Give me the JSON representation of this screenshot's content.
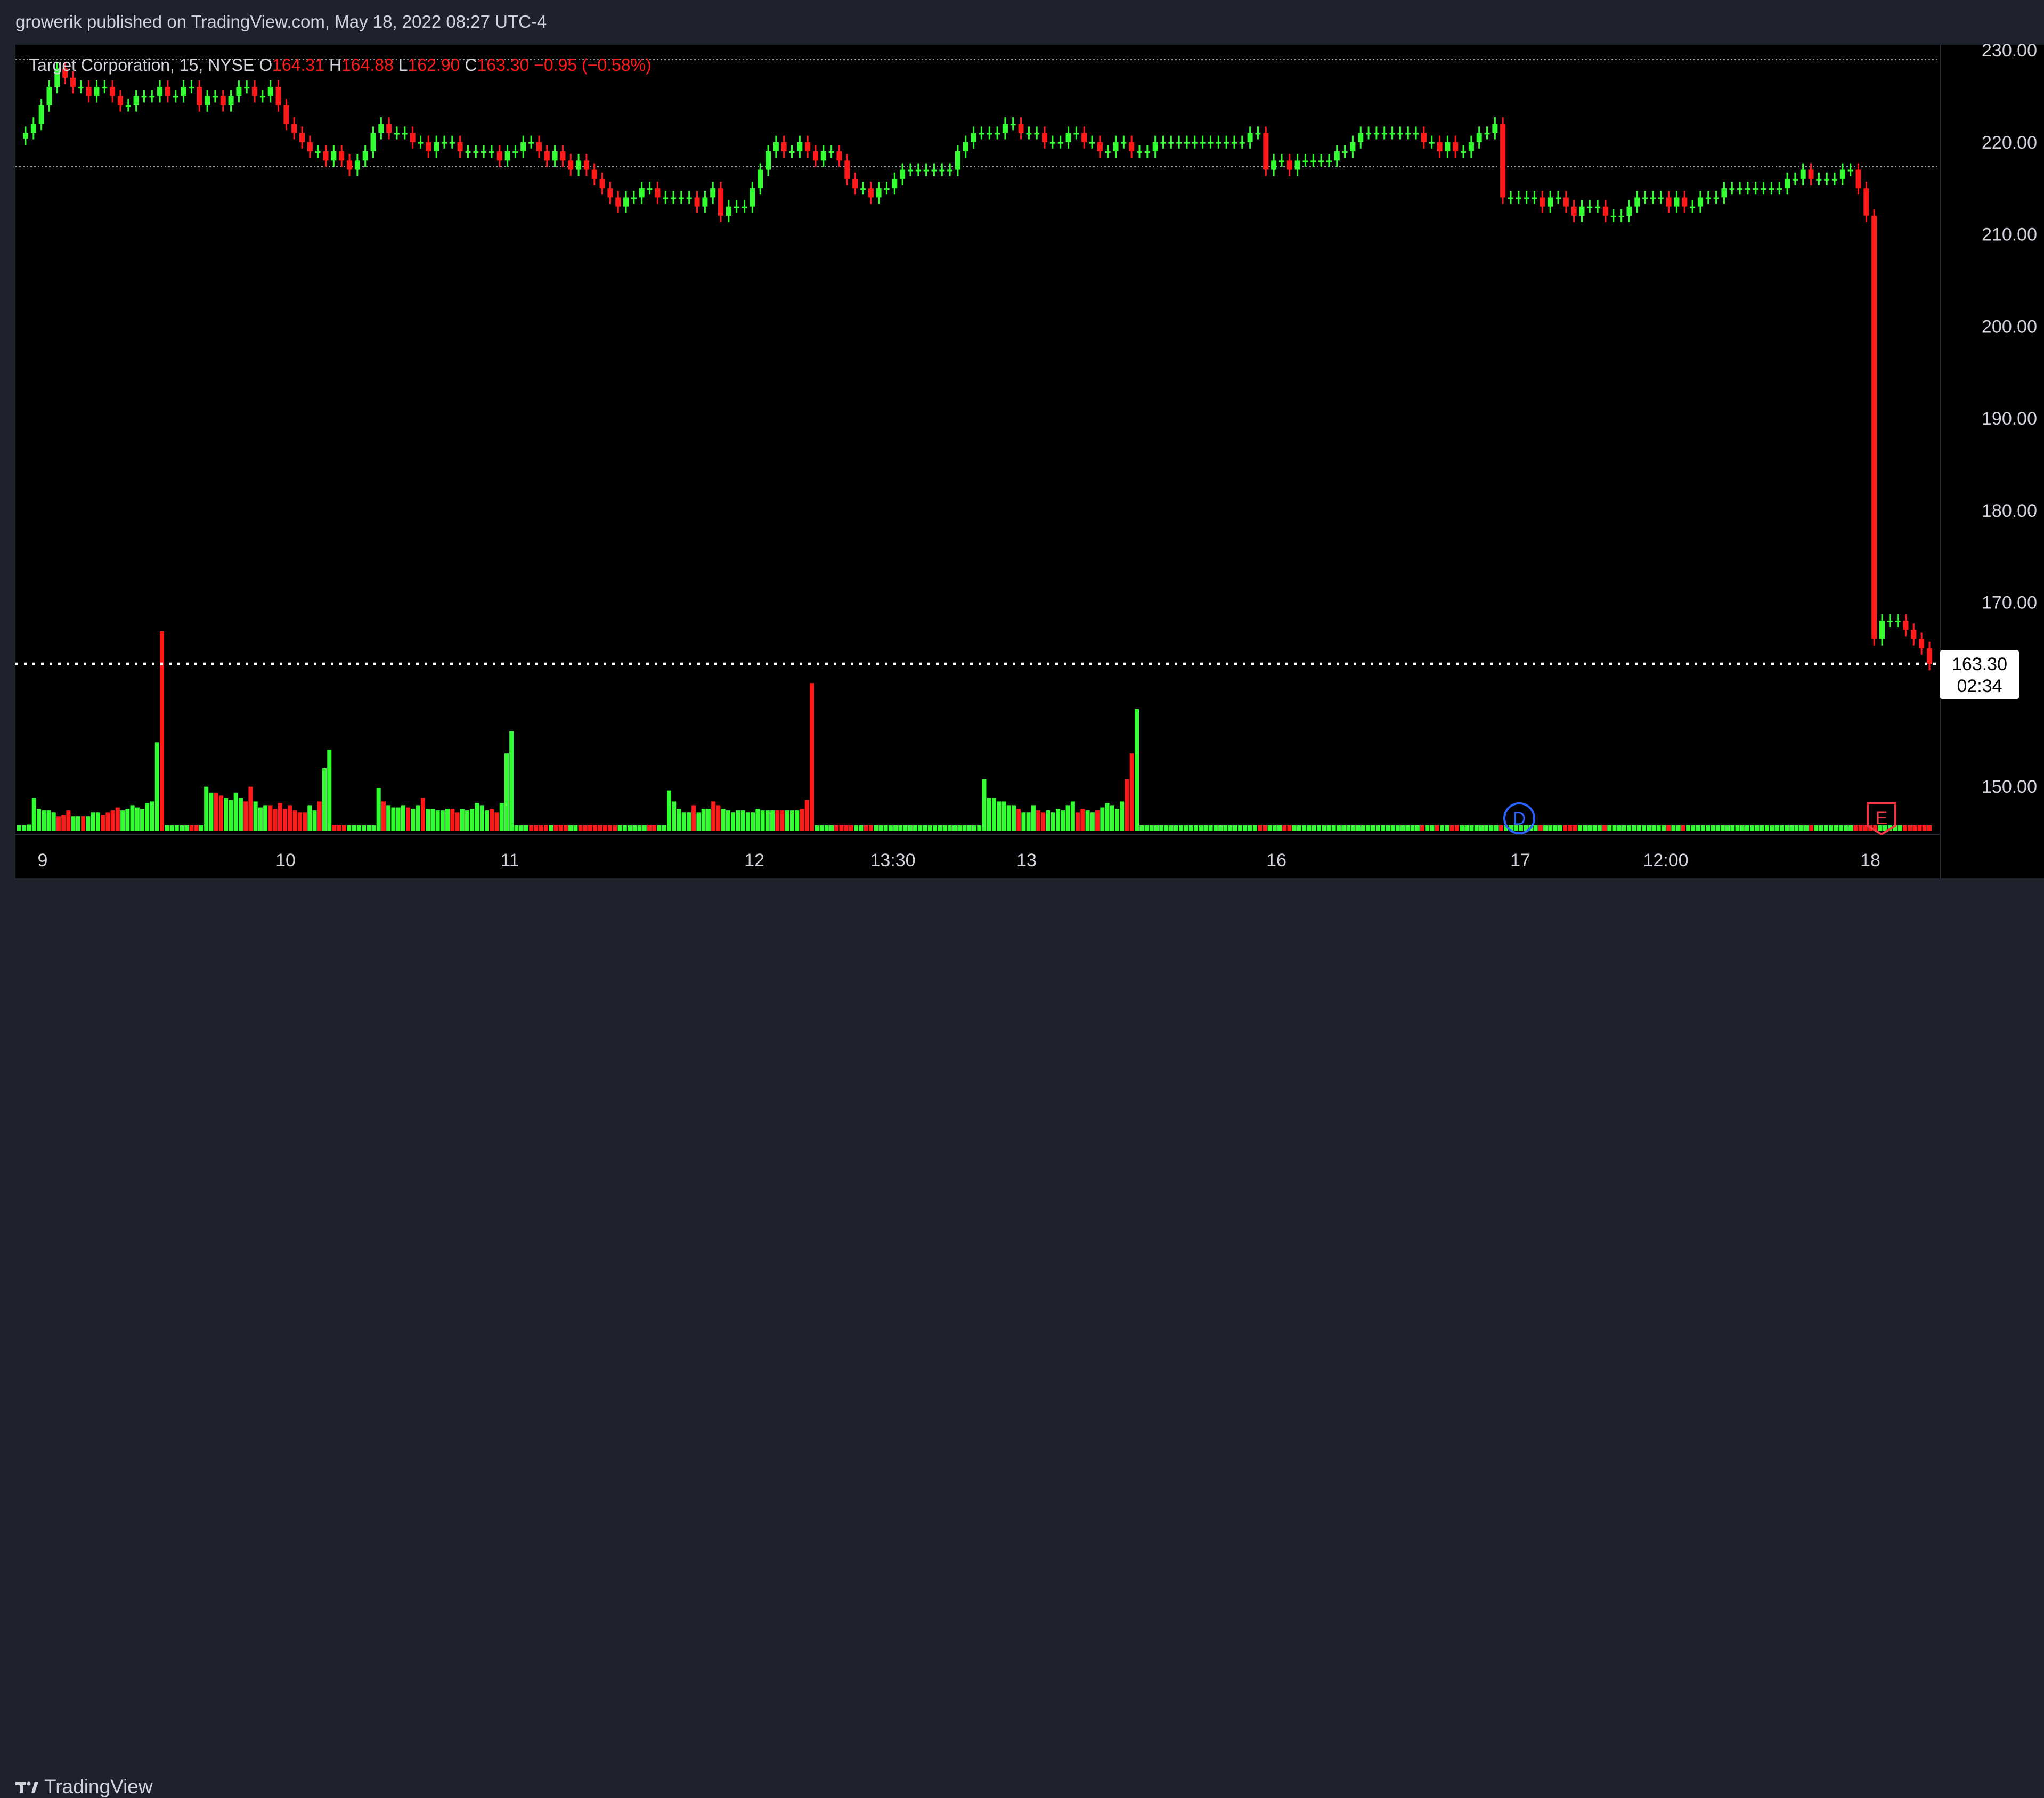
{
  "header": {
    "publisher_text": "growerik published on TradingView.com, May 18, 2022 08:27 UTC-4"
  },
  "legend": {
    "symbol": "Target Corporation, 15, NYSE",
    "o_label": "O",
    "o_value": "164.31",
    "h_label": "H",
    "h_value": "164.88",
    "l_label": "L",
    "l_value": "162.90",
    "c_label": "C",
    "c_value": "163.30",
    "change": "−0.95 (−0.58%)"
  },
  "price_tag": {
    "value": "163.30",
    "countdown": "02:34"
  },
  "markers": {
    "dividend": "D",
    "earnings": "E"
  },
  "footer": {
    "brand": "TradingView"
  },
  "colors": {
    "up": "#33ff33",
    "down": "#ff1a1a",
    "background": "#000000",
    "panel": "#1e222d"
  },
  "icons": {
    "logo": "tradingview-logo-icon",
    "dividend": "dividend-marker-icon",
    "earnings": "earnings-marker-icon"
  },
  "chart_data": {
    "type": "candlestick",
    "title": "Target Corporation, 15, NYSE",
    "y_ticks": [
      "230.00",
      "220.00",
      "210.00",
      "200.00",
      "190.00",
      "180.00",
      "170.00",
      "150.00"
    ],
    "ylim": [
      144,
      231
    ],
    "x_ticks": [
      "9",
      "10",
      "11",
      "12",
      "13:30",
      "13",
      "16",
      "17",
      "12:00",
      "18"
    ],
    "last_price": 163.3,
    "series": [
      {
        "name": "Price",
        "type": "candles",
        "close": [
          221,
          222,
          224,
          226,
          228,
          227,
          226,
          226,
          225,
          226,
          226,
          225,
          224,
          224,
          225,
          225,
          225,
          226,
          225,
          225,
          226,
          226,
          224,
          225,
          225,
          224,
          225,
          226,
          226,
          225,
          225,
          226,
          224,
          222,
          221,
          220,
          219,
          219,
          218,
          219,
          218,
          217,
          218,
          219,
          221,
          222,
          221,
          221,
          221,
          220,
          220,
          219,
          220,
          220,
          220,
          219,
          219,
          219,
          219,
          219,
          218,
          219,
          219,
          220,
          220,
          219,
          218,
          219,
          218,
          217,
          218,
          217,
          216,
          215,
          214,
          213,
          214,
          214,
          215,
          215,
          214,
          214,
          214,
          214,
          214,
          213,
          214,
          215,
          212,
          213,
          213,
          213,
          215,
          217,
          219,
          220,
          219,
          219,
          220,
          219,
          218,
          219,
          219,
          218,
          216,
          215,
          215,
          214,
          215,
          215,
          216,
          217,
          217,
          217,
          217,
          217,
          217,
          217,
          219,
          220,
          221,
          221,
          221,
          221,
          222,
          222,
          221,
          221,
          221,
          220,
          220,
          220,
          221,
          221,
          220,
          220,
          219,
          219,
          220,
          220,
          219,
          219,
          219,
          220,
          220,
          220,
          220,
          220,
          220,
          220,
          220,
          220,
          220,
          220,
          220,
          221,
          221,
          217,
          218,
          218,
          217,
          218,
          218,
          218,
          218,
          218,
          219,
          219,
          220,
          221,
          221,
          221,
          221,
          221,
          221,
          221,
          221,
          220,
          220,
          219,
          220,
          219,
          219,
          220,
          221,
          221,
          222,
          214,
          214,
          214,
          214,
          214,
          213,
          214,
          214,
          213,
          212,
          213,
          213,
          213,
          212,
          212,
          212,
          213,
          214,
          214,
          214,
          214,
          213,
          214,
          213,
          213,
          214,
          214,
          214,
          215,
          215,
          215,
          215,
          215,
          215,
          215,
          215,
          216,
          216,
          217,
          216,
          216,
          216,
          216,
          217,
          217,
          215,
          212,
          166,
          168,
          168,
          168,
          167,
          166,
          165,
          163.3
        ]
      },
      {
        "name": "Volume",
        "type": "bars",
        "values": [
          8,
          8,
          9,
          45,
          30,
          28,
          28,
          25,
          20,
          22,
          28,
          20,
          20,
          20,
          20,
          25,
          25,
          22,
          25,
          28,
          32,
          28,
          30,
          35,
          32,
          30,
          38,
          40,
          120,
          270,
          8,
          8,
          8,
          8,
          8,
          8,
          8,
          8,
          60,
          52,
          52,
          48,
          45,
          42,
          52,
          45,
          40,
          60,
          40,
          32,
          35,
          35,
          30,
          38,
          30,
          35,
          28,
          25,
          25,
          35,
          28,
          40,
          85,
          110,
          8,
          8,
          8,
          8,
          8,
          8,
          8,
          8,
          8,
          58,
          40,
          35,
          32,
          32,
          35,
          32,
          30,
          35,
          45,
          30,
          30,
          28,
          28,
          30,
          30,
          25,
          30,
          28,
          30,
          38,
          35,
          28,
          30,
          25,
          38,
          105,
          135,
          8,
          8,
          8,
          8,
          8,
          8,
          8,
          8,
          8,
          8,
          8,
          8,
          8,
          8,
          8,
          8,
          8,
          8,
          8,
          8,
          8,
          8,
          8,
          8,
          8,
          8,
          8,
          8,
          8,
          8,
          8,
          55,
          40,
          30,
          25,
          25,
          35,
          25,
          30,
          30,
          40,
          35,
          30,
          28,
          25,
          28,
          28,
          25,
          25,
          30,
          28,
          28,
          28,
          28,
          28,
          28,
          28,
          28,
          30,
          42,
          200,
          8,
          8,
          8,
          8,
          8,
          8,
          8,
          8,
          8,
          8,
          8,
          8,
          8,
          8,
          8,
          8,
          8,
          8,
          8,
          8,
          8,
          8,
          8,
          8,
          8,
          8,
          8,
          8,
          8,
          8,
          8,
          8,
          8,
          8,
          70,
          45,
          45,
          40,
          40,
          35,
          35,
          30,
          25,
          25,
          35,
          28,
          25,
          28,
          25,
          30,
          28,
          35,
          40,
          25,
          30,
          28,
          25,
          28,
          32,
          38,
          35,
          30,
          40,
          70,
          105,
          165,
          8,
          8,
          8,
          8,
          8,
          8,
          8,
          8,
          8,
          8,
          8,
          8,
          8,
          8,
          8,
          8,
          8,
          8,
          8,
          8,
          8,
          8,
          8,
          8,
          8,
          8,
          8,
          8,
          8,
          8,
          8,
          8,
          8,
          8,
          8,
          8,
          8,
          8,
          8,
          8,
          8,
          8,
          8,
          8,
          8,
          8,
          8,
          8,
          8,
          8,
          8,
          8,
          8,
          8,
          8,
          8,
          8,
          8,
          8,
          8,
          8,
          8,
          8,
          8,
          8,
          8,
          8,
          8,
          8,
          8,
          8,
          8,
          8,
          8,
          8,
          8,
          8,
          8,
          8,
          8,
          8,
          8,
          8,
          8,
          8,
          8,
          8,
          8,
          8,
          8,
          8,
          8,
          8,
          8,
          8,
          8,
          8,
          8,
          8,
          8,
          8,
          8,
          8,
          8,
          8,
          8,
          8,
          8,
          8,
          8,
          8,
          8,
          8,
          8,
          8,
          8,
          8,
          8,
          8,
          8,
          8,
          8,
          8,
          8,
          8,
          8,
          8,
          8,
          8,
          8,
          8,
          8,
          8,
          8,
          8,
          8,
          8,
          8,
          8,
          8,
          8,
          8,
          8,
          8,
          8,
          8,
          8,
          8,
          8,
          8,
          8,
          8,
          8,
          8,
          8,
          8,
          8,
          8,
          8,
          8,
          8
        ]
      }
    ]
  }
}
